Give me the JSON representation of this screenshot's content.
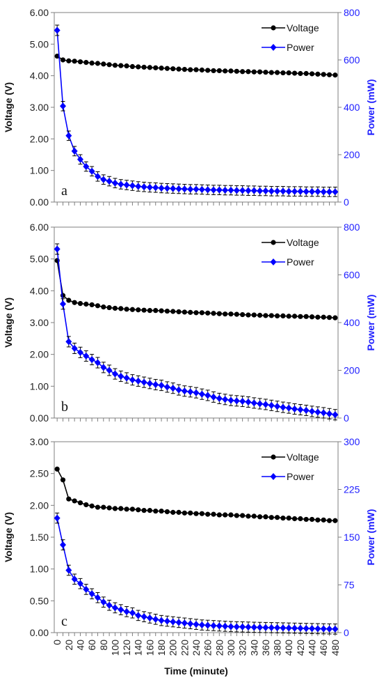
{
  "chart_data": {
    "type": "line",
    "xlabel": "Time (minute)",
    "x": [
      0,
      10,
      20,
      30,
      40,
      50,
      60,
      70,
      80,
      90,
      100,
      110,
      120,
      130,
      140,
      150,
      160,
      170,
      180,
      190,
      200,
      210,
      220,
      230,
      240,
      250,
      260,
      270,
      280,
      290,
      300,
      310,
      320,
      330,
      340,
      350,
      360,
      370,
      380,
      390,
      400,
      410,
      420,
      430,
      440,
      450,
      460,
      470,
      480
    ],
    "xlim": [
      -5,
      485
    ],
    "xticks": [
      "0",
      "20",
      "40",
      "60",
      "80",
      "100",
      "120",
      "140",
      "160",
      "180",
      "200",
      "220",
      "240",
      "260",
      "280",
      "300",
      "320",
      "340",
      "360",
      "380",
      "400",
      "420",
      "440",
      "460",
      "480"
    ],
    "colors": {
      "voltage": "#000000",
      "power": "#0000ff"
    },
    "panels": [
      {
        "label": "a",
        "ylabel": "Voltage (V)",
        "y2label": "Power (mW)",
        "ylim": [
          0,
          6
        ],
        "y2lim": [
          0,
          800
        ],
        "yticks": [
          "0.00",
          "1.00",
          "2.00",
          "3.00",
          "4.00",
          "5.00",
          "6.00"
        ],
        "y2ticks": [
          "0",
          "200",
          "400",
          "600",
          "800"
        ],
        "legend": [
          "Voltage",
          "Power"
        ],
        "series": [
          {
            "name": "Voltage",
            "axis": "left",
            "marker": "circle",
            "values": [
              4.62,
              4.5,
              4.47,
              4.46,
              4.44,
              4.42,
              4.4,
              4.39,
              4.37,
              4.35,
              4.33,
              4.32,
              4.31,
              4.29,
              4.28,
              4.27,
              4.26,
              4.25,
              4.24,
              4.23,
              4.22,
              4.21,
              4.2,
              4.19,
              4.19,
              4.18,
              4.17,
              4.16,
              4.16,
              4.15,
              4.15,
              4.14,
              4.13,
              4.13,
              4.12,
              4.12,
              4.11,
              4.1,
              4.1,
              4.09,
              4.09,
              4.08,
              4.07,
              4.07,
              4.06,
              4.05,
              4.04,
              4.03,
              4.02
            ],
            "error": 0.02
          },
          {
            "name": "Power",
            "axis": "right",
            "marker": "diamond",
            "values": [
              725,
              405,
              280,
              215,
              180,
              150,
              130,
              108,
              95,
              88,
              80,
              75,
              72,
              69,
              66,
              64,
              62,
              61,
              59,
              58,
              57,
              56,
              55,
              54,
              54,
              53,
              52,
              51,
              51,
              50,
              50,
              49,
              49,
              48,
              48,
              47,
              47,
              46,
              46,
              46,
              45,
              45,
              45,
              44,
              44,
              44,
              43,
              43,
              43
            ],
            "error": [
              22,
              20,
              20,
              20,
              20,
              20,
              20,
              20,
              20,
              20,
              20,
              20,
              20,
              20,
              20,
              20,
              20,
              20,
              20,
              20,
              20,
              20,
              20,
              20,
              20,
              20,
              20,
              20,
              20,
              20,
              20,
              20,
              20,
              20,
              20,
              20,
              20,
              20,
              20,
              20,
              20,
              20,
              20,
              20,
              20,
              20,
              20,
              20,
              20
            ]
          }
        ]
      },
      {
        "label": "b",
        "ylabel": "Voltage (V)",
        "y2label": "Power (mW)",
        "ylim": [
          0,
          6
        ],
        "y2lim": [
          0,
          800
        ],
        "yticks": [
          "0.00",
          "1.00",
          "2.00",
          "3.00",
          "4.00",
          "5.00",
          "6.00"
        ],
        "y2ticks": [
          "0",
          "200",
          "400",
          "600",
          "800"
        ],
        "legend": [
          "Voltage",
          "Power"
        ],
        "series": [
          {
            "name": "Voltage",
            "axis": "left",
            "marker": "circle",
            "values": [
              4.95,
              3.85,
              3.7,
              3.63,
              3.6,
              3.58,
              3.56,
              3.53,
              3.49,
              3.47,
              3.45,
              3.44,
              3.42,
              3.41,
              3.4,
              3.39,
              3.38,
              3.38,
              3.37,
              3.36,
              3.35,
              3.34,
              3.33,
              3.32,
              3.31,
              3.31,
              3.3,
              3.29,
              3.28,
              3.27,
              3.27,
              3.26,
              3.25,
              3.24,
              3.24,
              3.23,
              3.22,
              3.22,
              3.21,
              3.21,
              3.2,
              3.2,
              3.19,
              3.19,
              3.18,
              3.17,
              3.17,
              3.16,
              3.15
            ],
            "error": 0.03
          },
          {
            "name": "Power",
            "axis": "right",
            "marker": "diamond",
            "values": [
              708,
              478,
              320,
              292,
              275,
              260,
              245,
              232,
              212,
              200,
              185,
              175,
              168,
              160,
              155,
              150,
              145,
              140,
              137,
              130,
              125,
              118,
              113,
              110,
              106,
              100,
              95,
              88,
              82,
              78,
              74,
              72,
              70,
              67,
              63,
              60,
              57,
              53,
              49,
              45,
              42,
              38,
              35,
              32,
              28,
              25,
              22,
              18,
              14
            ],
            "error": [
              22,
              22,
              22,
              22,
              22,
              22,
              22,
              22,
              22,
              22,
              22,
              22,
              22,
              22,
              22,
              22,
              22,
              22,
              22,
              22,
              22,
              22,
              22,
              22,
              22,
              22,
              22,
              22,
              22,
              22,
              22,
              22,
              22,
              22,
              22,
              22,
              22,
              22,
              22,
              22,
              22,
              22,
              22,
              22,
              22,
              22,
              22,
              22,
              22
            ]
          }
        ]
      },
      {
        "label": "c",
        "ylabel": "Voltage (V)",
        "y2label": "Power (mW)",
        "ylim": [
          0,
          3
        ],
        "y2lim": [
          0,
          300
        ],
        "yticks": [
          "0.00",
          "0.50",
          "1.00",
          "1.50",
          "2.00",
          "2.50",
          "3.00"
        ],
        "y2ticks": [
          "0",
          "75",
          "150",
          "225",
          "300"
        ],
        "legend": [
          "Voltage",
          "Power"
        ],
        "series": [
          {
            "name": "Voltage",
            "axis": "left",
            "marker": "circle",
            "values": [
              2.57,
              2.4,
              2.1,
              2.07,
              2.04,
              2.01,
              1.99,
              1.97,
              1.97,
              1.96,
              1.95,
              1.95,
              1.94,
              1.94,
              1.93,
              1.92,
              1.92,
              1.91,
              1.91,
              1.9,
              1.89,
              1.89,
              1.88,
              1.88,
              1.87,
              1.87,
              1.86,
              1.86,
              1.85,
              1.85,
              1.85,
              1.84,
              1.84,
              1.83,
              1.83,
              1.82,
              1.82,
              1.81,
              1.81,
              1.8,
              1.8,
              1.79,
              1.79,
              1.78,
              1.78,
              1.77,
              1.77,
              1.76,
              1.76
            ],
            "error": 0.015
          },
          {
            "name": "Power",
            "axis": "right",
            "marker": "diamond",
            "values": [
              180,
              138,
              98,
              84,
              77,
              68,
              61,
              55,
              48,
              43,
              39,
              36,
              33,
              31,
              27,
              25,
              23,
              21,
              19,
              18,
              17,
              16,
              15,
              14,
              13,
              12,
              11.5,
              11,
              10.5,
              10,
              9.5,
              9.2,
              9,
              8.7,
              8.4,
              8.2,
              8,
              7.8,
              7.6,
              7.4,
              7.2,
              7,
              6.8,
              6.6,
              6.4,
              6.2,
              6,
              5.8,
              5.6
            ],
            "error": [
              8,
              8,
              8,
              8,
              8,
              8,
              8,
              8,
              8,
              8,
              8,
              8,
              8,
              8,
              8,
              8,
              8,
              8,
              8,
              8,
              8,
              8,
              8,
              8,
              8,
              8,
              8,
              8,
              8,
              8,
              8,
              8,
              8,
              8,
              8,
              8,
              8,
              8,
              8,
              8,
              8,
              8,
              8,
              8,
              8,
              8,
              8,
              8,
              8
            ]
          }
        ]
      }
    ]
  }
}
